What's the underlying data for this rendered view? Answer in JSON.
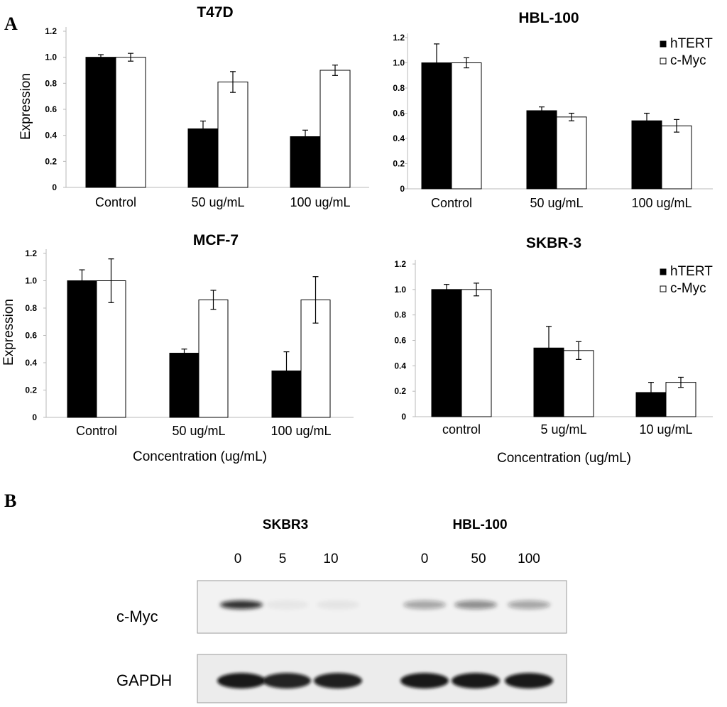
{
  "panel_labels": {
    "a": "A",
    "b": "B"
  },
  "colors": {
    "hTERT": "#000000",
    "c-Myc": "#ffffff",
    "bar_outline": "#000000",
    "axis": "#b8b8b8"
  },
  "legend": {
    "placement": "top-right",
    "entries": [
      "hTERT",
      "c-Myc"
    ]
  },
  "chart_data": [
    {
      "type": "bar",
      "title": "T47D",
      "ylabel": "Expression",
      "xlabel": "",
      "categories": [
        "Control",
        "50 ug/mL",
        "100 ug/mL"
      ],
      "ylim": [
        0,
        1.2
      ],
      "yticks": [
        "0",
        "0.2",
        "0.4",
        "0.6",
        "0.8",
        "1.0",
        "1.2"
      ],
      "grid": false,
      "show_legend": false,
      "series": [
        {
          "name": "hTERT",
          "values": [
            1.0,
            0.45,
            0.39
          ],
          "errors": [
            0.02,
            0.06,
            0.05
          ]
        },
        {
          "name": "c-Myc",
          "values": [
            1.0,
            0.81,
            0.9
          ],
          "errors": [
            0.03,
            0.08,
            0.04
          ]
        }
      ]
    },
    {
      "type": "bar",
      "title": "HBL-100",
      "ylabel": "",
      "xlabel": "",
      "categories": [
        "Control",
        "50 ug/mL",
        "100 ug/mL"
      ],
      "ylim": [
        0,
        1.2
      ],
      "yticks": [
        "0",
        "0.2",
        "0.4",
        "0.6",
        "0.8",
        "1.0",
        "1.2"
      ],
      "grid": false,
      "show_legend": true,
      "series": [
        {
          "name": "hTERT",
          "values": [
            1.0,
            0.62,
            0.54
          ],
          "errors": [
            0.15,
            0.03,
            0.06
          ]
        },
        {
          "name": "c-Myc",
          "values": [
            1.0,
            0.57,
            0.5
          ],
          "errors": [
            0.04,
            0.03,
            0.05
          ]
        }
      ]
    },
    {
      "type": "bar",
      "title": "MCF-7",
      "ylabel": "Expression",
      "xlabel": "Concentration (ug/mL)",
      "categories": [
        "Control",
        "50 ug/mL",
        "100 ug/mL"
      ],
      "ylim": [
        0,
        1.2
      ],
      "yticks": [
        "0",
        "0.2",
        "0.4",
        "0.6",
        "0.8",
        "1.0",
        "1.2"
      ],
      "grid": false,
      "show_legend": false,
      "series": [
        {
          "name": "hTERT",
          "values": [
            1.0,
            0.47,
            0.34
          ],
          "errors": [
            0.08,
            0.03,
            0.14
          ]
        },
        {
          "name": "c-Myc",
          "values": [
            1.0,
            0.86,
            0.86
          ],
          "errors": [
            0.16,
            0.07,
            0.17
          ]
        }
      ]
    },
    {
      "type": "bar",
      "title": "SKBR-3",
      "ylabel": "",
      "xlabel": "Concentration  (ug/mL)",
      "categories": [
        "control",
        "5 ug/mL",
        "10 ug/mL"
      ],
      "ylim": [
        0,
        1.2
      ],
      "yticks": [
        "0",
        "0.2",
        "0.4",
        "0.6",
        "0.8",
        "1.0",
        "1.2"
      ],
      "grid": false,
      "show_legend": true,
      "series": [
        {
          "name": "hTERT",
          "values": [
            1.0,
            0.54,
            0.19
          ],
          "errors": [
            0.04,
            0.17,
            0.08
          ]
        },
        {
          "name": "c-Myc",
          "values": [
            1.0,
            0.52,
            0.27
          ],
          "errors": [
            0.05,
            0.07,
            0.04
          ]
        }
      ]
    }
  ],
  "blot": {
    "groups": [
      {
        "name": "SKBR3",
        "lanes": [
          "0",
          "5",
          "10"
        ]
      },
      {
        "name": "HBL-100",
        "lanes": [
          "0",
          "50",
          "100"
        ]
      }
    ],
    "rows": [
      {
        "label": "c-Myc",
        "intensities": [
          0.85,
          0.05,
          0.06,
          0.35,
          0.45,
          0.35
        ]
      },
      {
        "label": "GAPDH",
        "intensities": [
          0.95,
          0.9,
          0.92,
          0.95,
          0.95,
          0.95
        ]
      }
    ]
  }
}
